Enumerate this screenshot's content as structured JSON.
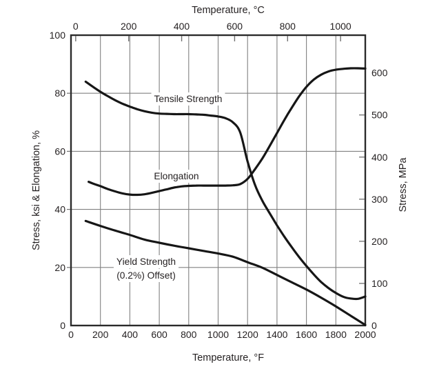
{
  "chart_data": {
    "type": "line",
    "top_axis": {
      "title": "Temperature, °C",
      "unit": "°C",
      "ticks": [
        0,
        200,
        400,
        600,
        800,
        1000
      ]
    },
    "bottom_axis": {
      "title": "Temperature, °F",
      "unit": "°F",
      "min": 0,
      "max": 2000,
      "ticks": [
        0,
        200,
        400,
        600,
        800,
        1000,
        1200,
        1400,
        1600,
        1800,
        2000
      ]
    },
    "left_axis": {
      "title": "Stress, ksi & Elongation, %",
      "min": 0,
      "max": 100,
      "ticks": [
        0,
        20,
        40,
        60,
        80,
        100
      ]
    },
    "right_axis": {
      "title": "Stress, MPa",
      "unit": "MPa",
      "ticks": [
        0,
        100,
        200,
        300,
        400,
        500,
        600
      ]
    },
    "grid": "on",
    "series": [
      {
        "name": "Tensile Strength",
        "units": "ksi (left axis) / MPa (right axis)",
        "x_unit": "°F",
        "points": [
          [
            100,
            84
          ],
          [
            150,
            82.2
          ],
          [
            200,
            80.5
          ],
          [
            250,
            79
          ],
          [
            300,
            77.6
          ],
          [
            350,
            76.4
          ],
          [
            400,
            75.4
          ],
          [
            450,
            74.5
          ],
          [
            500,
            73.8
          ],
          [
            550,
            73.3
          ],
          [
            600,
            73
          ],
          [
            650,
            72.9
          ],
          [
            700,
            72.8
          ],
          [
            750,
            72.8
          ],
          [
            800,
            72.8
          ],
          [
            850,
            72.7
          ],
          [
            900,
            72.6
          ],
          [
            950,
            72.3
          ],
          [
            1000,
            72
          ],
          [
            1050,
            71.4
          ],
          [
            1100,
            70
          ],
          [
            1150,
            66.5
          ],
          [
            1200,
            56.5
          ],
          [
            1250,
            48.5
          ],
          [
            1300,
            43
          ],
          [
            1350,
            38.7
          ],
          [
            1400,
            34.5
          ],
          [
            1450,
            30.6
          ],
          [
            1500,
            27
          ],
          [
            1550,
            23.6
          ],
          [
            1600,
            20.5
          ],
          [
            1650,
            17.6
          ],
          [
            1700,
            15
          ],
          [
            1750,
            12.9
          ],
          [
            1800,
            11.2
          ],
          [
            1850,
            9.9
          ],
          [
            1900,
            9.3
          ],
          [
            1950,
            9.2
          ],
          [
            2000,
            10
          ]
        ]
      },
      {
        "name": "Elongation",
        "units": "% (left axis)",
        "x_unit": "°F",
        "points": [
          [
            120,
            49.5
          ],
          [
            160,
            48.7
          ],
          [
            200,
            48
          ],
          [
            250,
            47
          ],
          [
            300,
            46.2
          ],
          [
            350,
            45.5
          ],
          [
            400,
            45.1
          ],
          [
            450,
            45
          ],
          [
            500,
            45.2
          ],
          [
            550,
            45.7
          ],
          [
            600,
            46.3
          ],
          [
            650,
            46.9
          ],
          [
            700,
            47.5
          ],
          [
            750,
            47.9
          ],
          [
            800,
            48.1
          ],
          [
            850,
            48.2
          ],
          [
            900,
            48.2
          ],
          [
            950,
            48.2
          ],
          [
            1000,
            48.2
          ],
          [
            1050,
            48.2
          ],
          [
            1100,
            48.3
          ],
          [
            1150,
            48.7
          ],
          [
            1200,
            50.5
          ],
          [
            1250,
            53.8
          ],
          [
            1300,
            57.5
          ],
          [
            1350,
            61.8
          ],
          [
            1400,
            66.3
          ],
          [
            1450,
            70.8
          ],
          [
            1500,
            75
          ],
          [
            1550,
            78.9
          ],
          [
            1600,
            82.2
          ],
          [
            1650,
            84.7
          ],
          [
            1700,
            86.4
          ],
          [
            1750,
            87.5
          ],
          [
            1800,
            88.1
          ],
          [
            1850,
            88.4
          ],
          [
            1900,
            88.6
          ],
          [
            1950,
            88.6
          ],
          [
            2000,
            88.5
          ]
        ]
      },
      {
        "name": "Yield Strength (0.2%) Offset)",
        "label_line1": "Yield Strength",
        "label_line2": "(0.2%) Offset)",
        "units": "ksi (left axis) / MPa (right axis)",
        "x_unit": "°F",
        "points": [
          [
            100,
            36
          ],
          [
            200,
            34.3
          ],
          [
            300,
            32.7
          ],
          [
            400,
            31.2
          ],
          [
            500,
            29.6
          ],
          [
            600,
            28.5
          ],
          [
            700,
            27.5
          ],
          [
            800,
            26.6
          ],
          [
            900,
            25.7
          ],
          [
            1000,
            24.8
          ],
          [
            1100,
            23.7
          ],
          [
            1200,
            21.8
          ],
          [
            1300,
            19.9
          ],
          [
            1400,
            17.4
          ],
          [
            1500,
            14.9
          ],
          [
            1600,
            12.4
          ],
          [
            1700,
            9.6
          ],
          [
            1800,
            6.6
          ],
          [
            1900,
            3.4
          ],
          [
            2000,
            0.2
          ]
        ]
      }
    ],
    "colors": {
      "curve": "#161616",
      "frame": "#2a2a2a",
      "grid": "#808080",
      "minor_tick": "#6f6f6f",
      "text": "#231f20",
      "background": "#ffffff"
    }
  }
}
